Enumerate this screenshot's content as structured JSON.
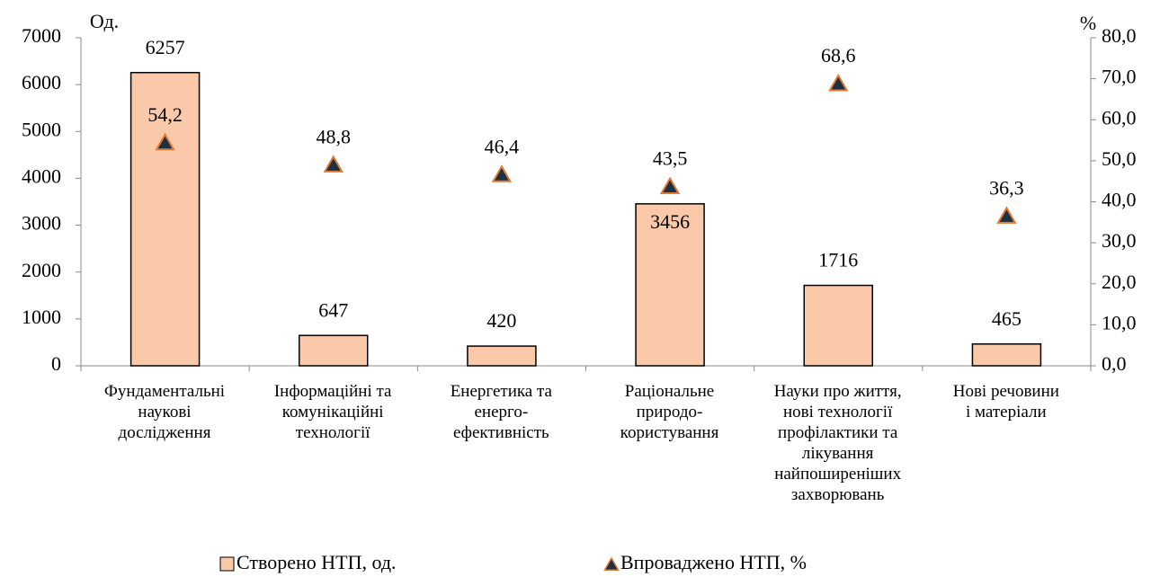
{
  "chart_data": {
    "type": "bar",
    "ylabel": "Од.",
    "y2label": "%",
    "categories": [
      "Фундаментальні\nнаукові\nдослідження",
      "Інформаційні та\nкомунікаційні\nтехнології",
      "Енергетика та\nенерго-\nефективність",
      "Раціональне\nприродо-\nкористування",
      "Науки про життя,\nнові технології\nпрофілактики та\nлікування\nнайпоширеніших\nзахворювань",
      "Нові речовини\nі матеріали"
    ],
    "series": [
      {
        "name": "Створено НТП, од.",
        "type": "bar",
        "color": "#f9c9aa",
        "values": [
          6257,
          647,
          420,
          3456,
          1716,
          465
        ]
      },
      {
        "name": "Впроваджено НТП, %",
        "type": "scatter",
        "marker": "triangle",
        "axis": "y2",
        "color": "#1f3040",
        "edge_color": "#e07b39",
        "values": [
          54.2,
          48.8,
          46.4,
          43.5,
          68.6,
          36.3
        ],
        "value_labels": [
          "54,2",
          "48,8",
          "46,4",
          "43,5",
          "68,6",
          "36,3"
        ]
      }
    ],
    "ylim": [
      0,
      7000
    ],
    "yticks": [
      0,
      1000,
      2000,
      3000,
      4000,
      5000,
      6000,
      7000
    ],
    "y2lim": [
      0,
      80
    ],
    "y2ticks": [
      {
        "value": 0,
        "label": "0,0"
      },
      {
        "value": 10,
        "label": "10,0"
      },
      {
        "value": 20,
        "label": "20,0"
      },
      {
        "value": 30,
        "label": "30,0"
      },
      {
        "value": 40,
        "label": "40,0"
      },
      {
        "value": 50,
        "label": "50,0"
      },
      {
        "value": 60,
        "label": "60,0"
      },
      {
        "value": 70,
        "label": "70,0"
      },
      {
        "value": 80,
        "label": "80,0"
      }
    ],
    "legend": "bottom"
  }
}
